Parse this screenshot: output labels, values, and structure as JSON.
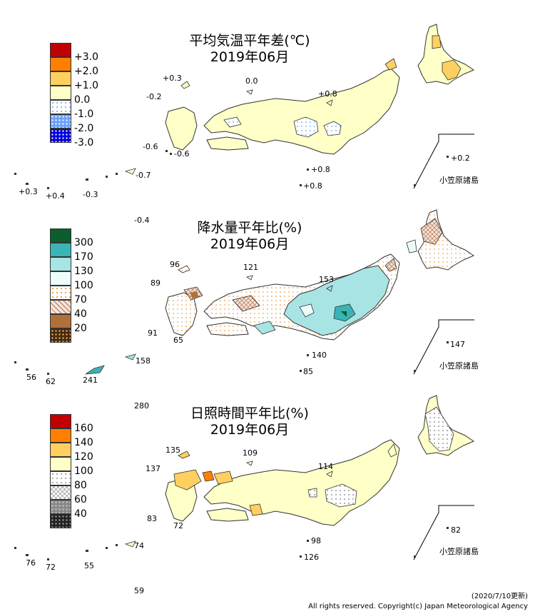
{
  "panels": [
    {
      "title_line1": "平均気温平年差(℃)",
      "title_line2": "2019年06月",
      "legend": [
        {
          "label": "+3.0",
          "color": "#c00000",
          "pattern": "solid"
        },
        {
          "label": "+2.0",
          "color": "#ff8000",
          "pattern": "solid"
        },
        {
          "label": "+1.0",
          "color": "#ffd060",
          "pattern": "solid"
        },
        {
          "label": "0.0",
          "color": "#ffffc8",
          "pattern": "solid"
        },
        {
          "label": "-1.0",
          "color": "#ffffff",
          "pattern": "dots-blue-light"
        },
        {
          "label": "-2.0",
          "color": "#6aa0ff",
          "pattern": "dots-blue"
        },
        {
          "label": "-3.0",
          "color": "#0000e0",
          "pattern": "dots-blue-dark"
        }
      ],
      "values": {
        "v1": "+0.3",
        "v2": "0.0",
        "v3": "-0.2",
        "v4": "+0.8",
        "v5": "-0.6",
        "v6": "-0.6",
        "v7": "+0.2",
        "v8": "+0.8",
        "v9": "+0.8",
        "v10": "+0.3",
        "v11": "+0.4",
        "v12": "-0.3",
        "v13": "-0.7",
        "v14": "-0.4"
      },
      "bonin_label": "小笠原諸島"
    },
    {
      "title_line1": "降水量平年比(%)",
      "title_line2": "2019年06月",
      "legend": [
        {
          "label": "300",
          "color": "#0b5e2e",
          "pattern": "solid"
        },
        {
          "label": "170",
          "color": "#3ab4b4",
          "pattern": "solid"
        },
        {
          "label": "130",
          "color": "#a8e4e4",
          "pattern": "solid"
        },
        {
          "label": "100",
          "color": "#eefcfc",
          "pattern": "solid"
        },
        {
          "label": "70",
          "color": "#ffffff",
          "pattern": "dots-orange"
        },
        {
          "label": "40",
          "color": "#ffffff",
          "pattern": "cross-brown"
        },
        {
          "label": "20",
          "color": "#b0703a",
          "pattern": "solid"
        },
        {
          "label": "",
          "color": "#4a2a08",
          "pattern": "dots-dark"
        }
      ],
      "values": {
        "v1": "96",
        "v2": "121",
        "v3": "89",
        "v4": "153",
        "v5": "91",
        "v6": "65",
        "v7": "147",
        "v8": "140",
        "v9": "85",
        "v10": "56",
        "v11": "62",
        "v12": "241",
        "v13": "158",
        "v14": "280"
      },
      "bonin_label": "小笠原諸島"
    },
    {
      "title_line1": "日照時間平年比(%)",
      "title_line2": "2019年06月",
      "legend": [
        {
          "label": "160",
          "color": "#c00000",
          "pattern": "solid"
        },
        {
          "label": "140",
          "color": "#ff8000",
          "pattern": "solid"
        },
        {
          "label": "120",
          "color": "#ffd060",
          "pattern": "solid"
        },
        {
          "label": "100",
          "color": "#ffffc8",
          "pattern": "solid"
        },
        {
          "label": "80",
          "color": "#ffffff",
          "pattern": "dots-gray-light"
        },
        {
          "label": "60",
          "color": "#ffffff",
          "pattern": "check-gray"
        },
        {
          "label": "40",
          "color": "#888888",
          "pattern": "solid"
        },
        {
          "label": "",
          "color": "#222222",
          "pattern": "dots-black"
        }
      ],
      "values": {
        "v1": "135",
        "v2": "109",
        "v3": "137",
        "v4": "114",
        "v5": "83",
        "v6": "72",
        "v7": "82",
        "v8": "98",
        "v9": "126",
        "v10": "76",
        "v11": "72",
        "v12": "55",
        "v13": "74",
        "v14": "59"
      },
      "bonin_label": "小笠原諸島"
    }
  ],
  "footer": {
    "update": "(2020/7/10更新)",
    "copyright": "All rights reserved. Copyright(c) Japan Meteorological Agency"
  }
}
